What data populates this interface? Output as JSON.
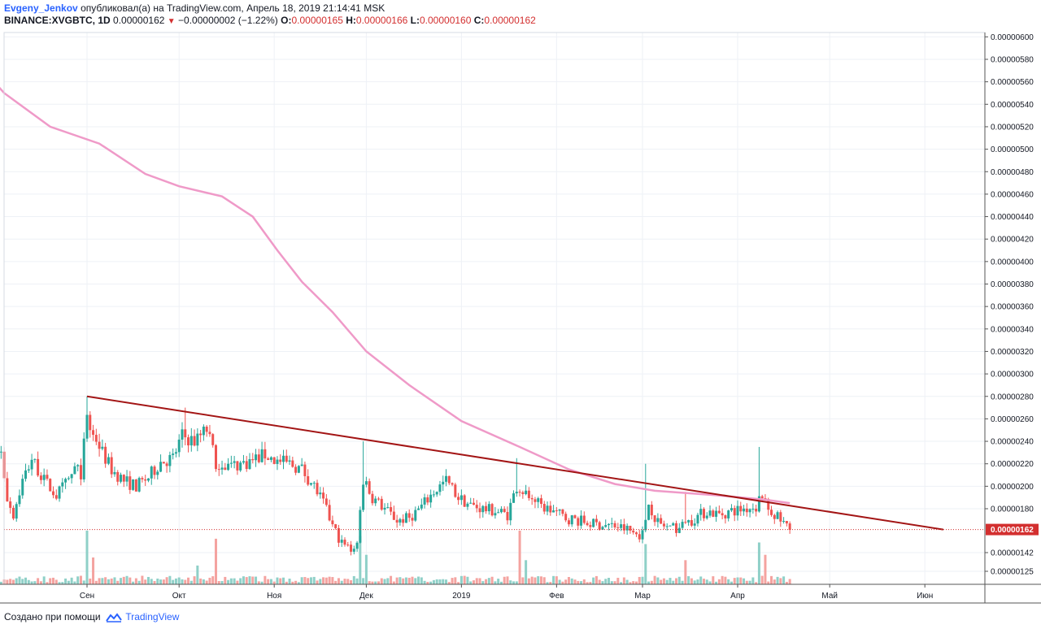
{
  "header": {
    "author": "Evgeny_Jenkov",
    "published_text": "опубликовал(а) на TradingView.com, Апрель 18, 2019 21:14:41 MSK",
    "symbol": "BINANCE:XVGBTC, 1D",
    "last": "0.00000162",
    "change": "−0.00000002 (−1.22%)",
    "o_label": "O:",
    "o_value": "0.00000165",
    "h_label": "H:",
    "h_value": "0.00000166",
    "l_label": "L:",
    "l_value": "0.00000160",
    "c_label": "C:",
    "c_value": "0.00000162"
  },
  "footer": {
    "text": "Создано при помощи",
    "brand": "TradingView"
  },
  "colors": {
    "up": "#26a69a",
    "down": "#ef5350",
    "volume_up": "#8fd0c8",
    "volume_down": "#f4a3a0",
    "ma": "#ef9ac8",
    "trendline": "#a31515",
    "last_price": "#d32f2f",
    "grid": "#eef1f6"
  },
  "chart_data": {
    "type": "candlestick",
    "timeframe": "1D",
    "symbol": "BINANCE:XVGBTC",
    "y_ticks": [
      "0.00000600",
      "0.00000580",
      "0.00000560",
      "0.00000540",
      "0.00000520",
      "0.00000500",
      "0.00000480",
      "0.00000460",
      "0.00000440",
      "0.00000420",
      "0.00000400",
      "0.00000380",
      "0.00000360",
      "0.00000340",
      "0.00000320",
      "0.00000300",
      "0.00000280",
      "0.00000260",
      "0.00000240",
      "0.00000220",
      "0.00000200",
      "0.00000180",
      "0.00000142",
      "0.00000125"
    ],
    "x_ticks": [
      "Сен",
      "Окт",
      "Ноя",
      "Дек",
      "2019",
      "Фев",
      "Мар",
      "Апр",
      "Май",
      "Июн"
    ],
    "x_tick_dates": [
      "2018-09-01",
      "2018-10-01",
      "2018-11-01",
      "2018-12-01",
      "2019-01-01",
      "2019-02-01",
      "2019-03-01",
      "2019-04-01",
      "2019-05-01",
      "2019-06-01"
    ],
    "ylim": [
      1.2e-06,
      6.1e-06
    ],
    "last_price_label": "0.00000162",
    "last_price": 1.62e-06,
    "close_path": [
      [
        "2018-07-25",
        2.7e-06
      ],
      [
        "2018-07-28",
        2.55e-06
      ],
      [
        "2018-08-01",
        2.4e-06
      ],
      [
        "2018-08-04",
        2.3e-06
      ],
      [
        "2018-08-06",
        1.9e-06
      ],
      [
        "2018-08-08",
        1.75e-06
      ],
      [
        "2018-08-11",
        2.05e-06
      ],
      [
        "2018-08-14",
        2.25e-06
      ],
      [
        "2018-08-18",
        2.05e-06
      ],
      [
        "2018-08-22",
        1.92e-06
      ],
      [
        "2018-08-26",
        2.05e-06
      ],
      [
        "2018-08-28",
        2.15e-06
      ],
      [
        "2018-08-30",
        2.12e-06
      ],
      [
        "2018-09-01",
        2.6e-06
      ],
      [
        "2018-09-03",
        2.48e-06
      ],
      [
        "2018-09-06",
        2.3e-06
      ],
      [
        "2018-09-09",
        2.15e-06
      ],
      [
        "2018-09-13",
        2.05e-06
      ],
      [
        "2018-09-17",
        2e-06
      ],
      [
        "2018-09-21",
        2.08e-06
      ],
      [
        "2018-09-25",
        2.22e-06
      ],
      [
        "2018-09-29",
        2.25e-06
      ],
      [
        "2018-10-02",
        2.45e-06
      ],
      [
        "2018-10-06",
        2.4e-06
      ],
      [
        "2018-10-10",
        2.5e-06
      ],
      [
        "2018-10-13",
        2.22e-06
      ],
      [
        "2018-10-18",
        2.18e-06
      ],
      [
        "2018-10-24",
        2.22e-06
      ],
      [
        "2018-10-29",
        2.28e-06
      ],
      [
        "2018-11-02",
        2.22e-06
      ],
      [
        "2018-11-06",
        2.2e-06
      ],
      [
        "2018-11-10",
        2.15e-06
      ],
      [
        "2018-11-14",
        2e-06
      ],
      [
        "2018-11-17",
        1.85e-06
      ],
      [
        "2018-11-20",
        1.65e-06
      ],
      [
        "2018-11-23",
        1.5e-06
      ],
      [
        "2018-11-26",
        1.45e-06
      ],
      [
        "2018-11-28",
        1.5e-06
      ],
      [
        "2018-11-30",
        2.05e-06
      ],
      [
        "2018-12-03",
        1.9e-06
      ],
      [
        "2018-12-07",
        1.8e-06
      ],
      [
        "2018-12-11",
        1.7e-06
      ],
      [
        "2018-12-15",
        1.72e-06
      ],
      [
        "2018-12-19",
        1.82e-06
      ],
      [
        "2018-12-23",
        1.95e-06
      ],
      [
        "2018-12-27",
        2.05e-06
      ],
      [
        "2018-12-31",
        1.9e-06
      ],
      [
        "2019-01-04",
        1.83e-06
      ],
      [
        "2019-01-08",
        1.8e-06
      ],
      [
        "2019-01-12",
        1.78e-06
      ],
      [
        "2019-01-16",
        1.75e-06
      ],
      [
        "2019-01-19",
        2e-06
      ],
      [
        "2019-01-23",
        1.92e-06
      ],
      [
        "2019-01-27",
        1.82e-06
      ],
      [
        "2019-01-31",
        1.78e-06
      ],
      [
        "2019-02-04",
        1.72e-06
      ],
      [
        "2019-02-08",
        1.7e-06
      ],
      [
        "2019-02-12",
        1.67e-06
      ],
      [
        "2019-02-16",
        1.66e-06
      ],
      [
        "2019-02-20",
        1.65e-06
      ],
      [
        "2019-02-24",
        1.62e-06
      ],
      [
        "2019-02-27",
        1.58e-06
      ],
      [
        "2019-03-01",
        1.58e-06
      ],
      [
        "2019-03-03",
        1.85e-06
      ],
      [
        "2019-03-06",
        1.68e-06
      ],
      [
        "2019-03-10",
        1.62e-06
      ],
      [
        "2019-03-14",
        1.65e-06
      ],
      [
        "2019-03-18",
        1.72e-06
      ],
      [
        "2019-03-22",
        1.78e-06
      ],
      [
        "2019-03-26",
        1.75e-06
      ],
      [
        "2019-03-30",
        1.78e-06
      ],
      [
        "2019-04-03",
        1.8e-06
      ],
      [
        "2019-04-07",
        1.82e-06
      ],
      [
        "2019-04-09",
        1.95e-06
      ],
      [
        "2019-04-11",
        1.8e-06
      ],
      [
        "2019-04-14",
        1.72e-06
      ],
      [
        "2019-04-17",
        1.65e-06
      ],
      [
        "2019-04-18",
        1.62e-06
      ]
    ],
    "spikes": [
      [
        "2018-09-01",
        2.8e-06
      ],
      [
        "2018-10-03",
        2.7e-06
      ],
      [
        "2018-11-30",
        2.4e-06
      ],
      [
        "2019-01-19",
        2.25e-06
      ],
      [
        "2019-03-02",
        2.2e-06
      ],
      [
        "2019-03-15",
        1.95e-06
      ],
      [
        "2019-04-08",
        2.35e-06
      ]
    ],
    "volume_bursts": [
      [
        "2018-07-29",
        0.38
      ],
      [
        "2018-09-01",
        1.0
      ],
      [
        "2018-09-03",
        0.5
      ],
      [
        "2018-10-07",
        0.35
      ],
      [
        "2018-10-13",
        0.85
      ],
      [
        "2018-11-29",
        0.9
      ],
      [
        "2018-12-01",
        0.55
      ],
      [
        "2019-01-20",
        1.0
      ],
      [
        "2019-01-22",
        0.45
      ],
      [
        "2019-03-02",
        0.75
      ],
      [
        "2019-03-15",
        0.45
      ],
      [
        "2019-04-08",
        0.78
      ],
      [
        "2019-04-10",
        0.55
      ]
    ],
    "ma_series": {
      "name": "",
      "points": [
        [
          "2018-07-25",
          5.84e-06
        ],
        [
          "2018-08-05",
          5.5e-06
        ],
        [
          "2018-08-20",
          5.2e-06
        ],
        [
          "2018-09-05",
          5.05e-06
        ],
        [
          "2018-09-20",
          4.78e-06
        ],
        [
          "2018-10-01",
          4.67e-06
        ],
        [
          "2018-10-15",
          4.58e-06
        ],
        [
          "2018-10-25",
          4.4e-06
        ],
        [
          "2018-11-02",
          4.1e-06
        ],
        [
          "2018-11-10",
          3.82e-06
        ],
        [
          "2018-11-20",
          3.55e-06
        ],
        [
          "2018-12-01",
          3.2e-06
        ],
        [
          "2018-12-15",
          2.9e-06
        ],
        [
          "2019-01-01",
          2.58e-06
        ],
        [
          "2019-01-20",
          2.35e-06
        ],
        [
          "2019-02-05",
          2.15e-06
        ],
        [
          "2019-02-20",
          2.02e-06
        ],
        [
          "2019-03-05",
          1.96e-06
        ],
        [
          "2019-03-25",
          1.92e-06
        ],
        [
          "2019-04-10",
          1.88e-06
        ],
        [
          "2019-04-18",
          1.85e-06
        ]
      ]
    },
    "trendline": {
      "start": [
        "2018-09-01",
        2.8e-06
      ],
      "end": [
        "2019-06-07",
        1.62e-06
      ]
    }
  }
}
